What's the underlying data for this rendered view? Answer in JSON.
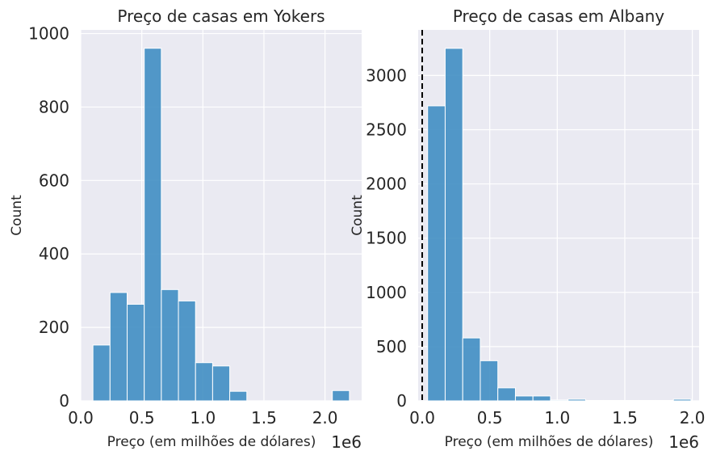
{
  "chart_data": [
    {
      "type": "bar",
      "title": "Preço de casas em Yokers",
      "xlabel": "Preço (em milhões de dólares)",
      "ylabel": "Count",
      "x_offset_label": "1e6",
      "xlim": [
        0.0,
        2.3
      ],
      "ylim": [
        0,
        1010
      ],
      "xticks": [
        0.0,
        0.5,
        1.0,
        1.5,
        2.0
      ],
      "xtick_labels": [
        "0.0",
        "0.5",
        "1.0",
        "1.5",
        "2.0"
      ],
      "yticks": [
        0,
        200,
        400,
        600,
        800,
        1000
      ],
      "ytick_labels": [
        "0",
        "200",
        "400",
        "600",
        "800",
        "1000"
      ],
      "grid": true,
      "bar_color": "#3b8bc2",
      "background": "#eaeaf2",
      "bins": [
        {
          "start": 0.1,
          "end": 0.24,
          "count": 152
        },
        {
          "start": 0.24,
          "end": 0.38,
          "count": 295
        },
        {
          "start": 0.38,
          "end": 0.52,
          "count": 263
        },
        {
          "start": 0.52,
          "end": 0.66,
          "count": 960
        },
        {
          "start": 0.66,
          "end": 0.8,
          "count": 303
        },
        {
          "start": 0.8,
          "end": 0.94,
          "count": 272
        },
        {
          "start": 0.94,
          "end": 1.08,
          "count": 104
        },
        {
          "start": 1.08,
          "end": 1.22,
          "count": 95
        },
        {
          "start": 1.22,
          "end": 1.36,
          "count": 26
        },
        {
          "start": 1.36,
          "end": 1.5,
          "count": 0
        },
        {
          "start": 1.5,
          "end": 1.64,
          "count": 0
        },
        {
          "start": 1.64,
          "end": 1.78,
          "count": 0
        },
        {
          "start": 1.78,
          "end": 1.92,
          "count": 0
        },
        {
          "start": 1.92,
          "end": 2.06,
          "count": 0
        },
        {
          "start": 2.06,
          "end": 2.2,
          "count": 28
        }
      ]
    },
    {
      "type": "bar",
      "title": "Preço de casas em Albany",
      "xlabel": "Preço (em milhões de dólares)",
      "ylabel": "Count",
      "x_offset_label": "1e6",
      "xlim": [
        -0.03,
        2.05
      ],
      "ylim": [
        0,
        3420
      ],
      "xticks": [
        0.0,
        0.5,
        1.0,
        1.5,
        2.0
      ],
      "xtick_labels": [
        "0.0",
        "0.5",
        "1.0",
        "1.5",
        "2.0"
      ],
      "yticks": [
        0,
        500,
        1000,
        1500,
        2000,
        2500,
        3000
      ],
      "ytick_labels": [
        "0",
        "500",
        "1000",
        "1500",
        "2000",
        "2500",
        "3000"
      ],
      "grid": true,
      "bar_color": "#3b8bc2",
      "background": "#eaeaf2",
      "vline": {
        "x": 0.0,
        "style": "dashed",
        "color": "#000000"
      },
      "bins": [
        {
          "start": 0.04,
          "end": 0.17,
          "count": 2720
        },
        {
          "start": 0.17,
          "end": 0.3,
          "count": 3250
        },
        {
          "start": 0.3,
          "end": 0.43,
          "count": 580
        },
        {
          "start": 0.43,
          "end": 0.56,
          "count": 370
        },
        {
          "start": 0.56,
          "end": 0.69,
          "count": 120
        },
        {
          "start": 0.69,
          "end": 0.82,
          "count": 45
        },
        {
          "start": 0.82,
          "end": 0.95,
          "count": 45
        },
        {
          "start": 0.95,
          "end": 1.08,
          "count": 8
        },
        {
          "start": 1.08,
          "end": 1.21,
          "count": 15
        },
        {
          "start": 1.21,
          "end": 1.34,
          "count": 4
        },
        {
          "start": 1.34,
          "end": 1.47,
          "count": 4
        },
        {
          "start": 1.47,
          "end": 1.6,
          "count": 4
        },
        {
          "start": 1.6,
          "end": 1.73,
          "count": 4
        },
        {
          "start": 1.73,
          "end": 1.86,
          "count": 4
        },
        {
          "start": 1.86,
          "end": 1.99,
          "count": 15
        }
      ]
    }
  ]
}
